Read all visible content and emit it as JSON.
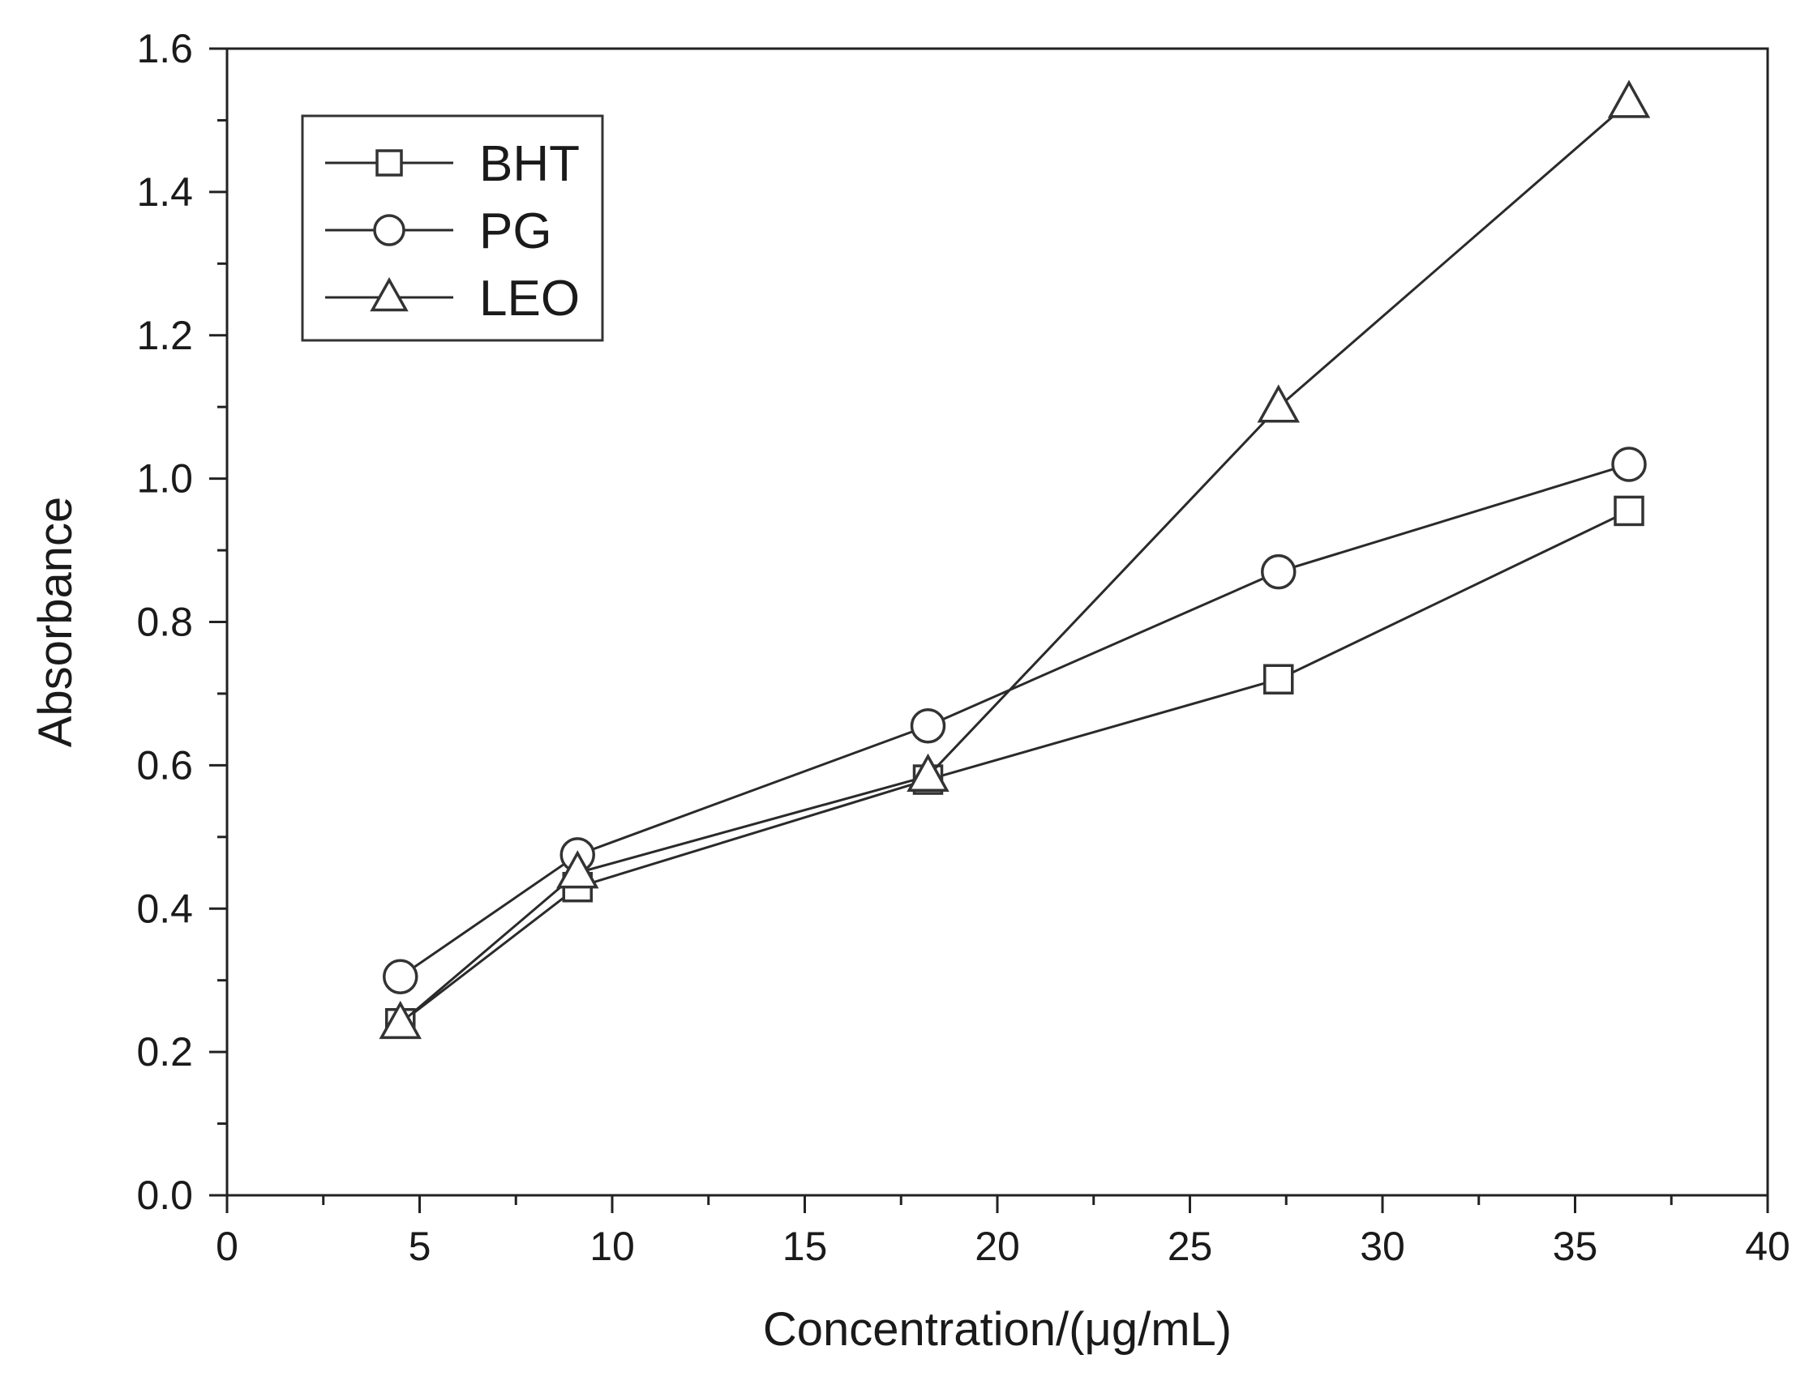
{
  "chart_data": {
    "type": "line",
    "title": "",
    "xlabel": "Concentration/(μg/mL)",
    "ylabel": "Absorbance",
    "xlim": [
      0,
      40
    ],
    "ylim": [
      0.0,
      1.6
    ],
    "x_ticks": [
      "0",
      "5",
      "10",
      "15",
      "20",
      "25",
      "30",
      "35",
      "40"
    ],
    "y_ticks": [
      "0.0",
      "0.2",
      "0.4",
      "0.6",
      "0.8",
      "1.0",
      "1.2",
      "1.4",
      "1.6"
    ],
    "grid": false,
    "legend_position": "top-left",
    "x": [
      4.5,
      9.1,
      18.2,
      27.3,
      36.4
    ],
    "series": [
      {
        "name": "BHT",
        "marker": "square",
        "values": [
          0.24,
          0.43,
          0.58,
          0.72,
          0.955
        ]
      },
      {
        "name": "PG",
        "marker": "circle",
        "values": [
          0.305,
          0.475,
          0.655,
          0.87,
          1.02
        ]
      },
      {
        "name": "LEO",
        "marker": "triangle",
        "values": [
          0.24,
          0.45,
          0.585,
          1.1,
          1.525
        ]
      }
    ]
  }
}
